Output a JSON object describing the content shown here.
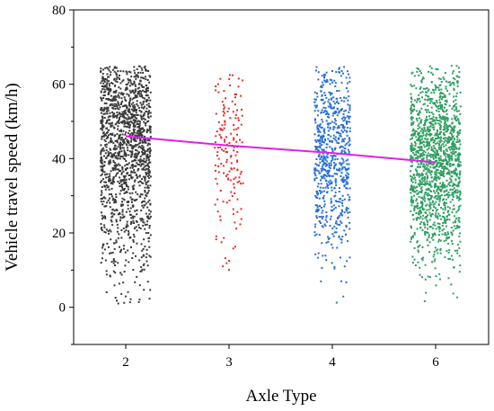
{
  "chart_data": {
    "type": "scatter",
    "xlabel": "Axle Type",
    "ylabel": "Vehicle travel speed (km/h)",
    "categories": [
      "2",
      "3",
      "4",
      "6"
    ],
    "ylim": [
      -10,
      80
    ],
    "yticks": [
      0,
      20,
      40,
      60,
      80
    ],
    "grid": false,
    "series": [
      {
        "category": "2",
        "color": "#3a3a3a",
        "point_count": 1500,
        "min": 1,
        "max": 65,
        "mean": 46
      },
      {
        "category": "3",
        "color": "#e0302c",
        "point_count": 160,
        "min": 6,
        "max": 63,
        "mean": 43.5
      },
      {
        "category": "4",
        "color": "#2a6fd6",
        "point_count": 700,
        "min": 1,
        "max": 65,
        "mean": 41.5
      },
      {
        "category": "6",
        "color": "#2e9e62",
        "point_count": 1500,
        "min": 1,
        "max": 65,
        "mean": 39
      }
    ],
    "trend_line": {
      "color": "#e020e8",
      "values": [
        46,
        43.5,
        41.5,
        39
      ]
    }
  }
}
